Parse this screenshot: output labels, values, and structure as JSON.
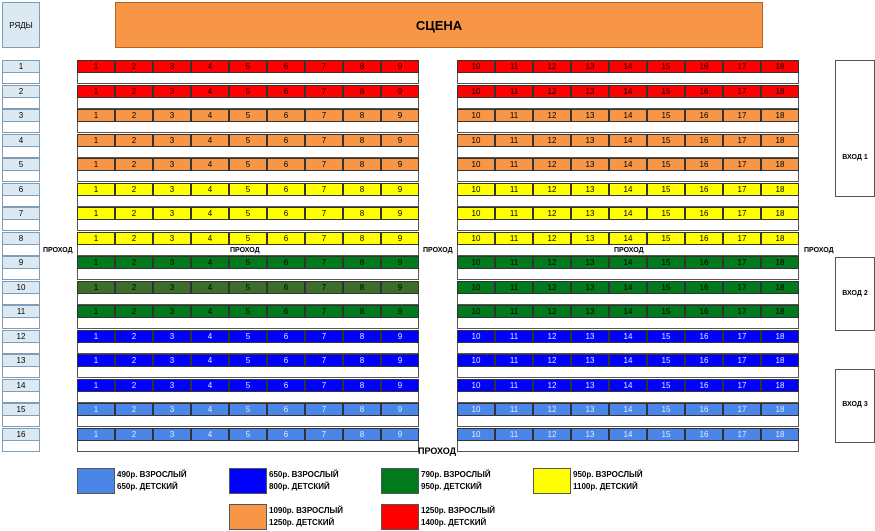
{
  "header": {
    "rows_label": "РЯДЫ",
    "stage_label": "СЦЕНА"
  },
  "aisles": {
    "side_label": "ПРОХОД",
    "center_label": "ПРОХОД",
    "bottom_label": "ПРОХОД"
  },
  "exits": [
    "ВХОД 1",
    "ВХОД 2",
    "ВХОД 3"
  ],
  "colors": {
    "red": "#ff0000",
    "orange": "#f79646",
    "yellow": "#ffff00",
    "green": "#007a1c",
    "blue": "#0000ff",
    "lightblue": "#4a86e8",
    "highlight_green": "#3a6e2a"
  },
  "rows": [
    {
      "label": "1",
      "color": "red"
    },
    {
      "label": "2",
      "color": "red"
    },
    {
      "label": "3",
      "color": "orange"
    },
    {
      "label": "4",
      "color": "orange"
    },
    {
      "label": "5",
      "color": "orange"
    },
    {
      "label": "6",
      "color": "yellow"
    },
    {
      "label": "7",
      "color": "yellow"
    },
    {
      "label": "8",
      "color": "yellow"
    },
    {
      "label": "9",
      "color": "green"
    },
    {
      "label": "10",
      "color": "green",
      "left_color": "highlight_green"
    },
    {
      "label": "11",
      "color": "green"
    },
    {
      "label": "12",
      "color": "blue"
    },
    {
      "label": "13",
      "color": "blue"
    },
    {
      "label": "14",
      "color": "blue"
    },
    {
      "label": "15",
      "color": "lightblue"
    },
    {
      "label": "16",
      "color": "lightblue"
    }
  ],
  "left_seats": [
    "1",
    "2",
    "3",
    "4",
    "5",
    "6",
    "7",
    "8",
    "9"
  ],
  "right_seats": [
    "10",
    "11",
    "12",
    "13",
    "14",
    "15",
    "16",
    "17",
    "18"
  ],
  "legend": [
    {
      "color": "lightblue",
      "line1": "490р. ВЗРОСЛЫЙ",
      "line2": "650р. ДЕТСКИЙ"
    },
    {
      "color": "blue",
      "line1": "650р. ВЗРОСЛЫЙ",
      "line2": "800р. ДЕТСКИЙ"
    },
    {
      "color": "green",
      "line1": "790р. ВЗРОСЛЫЙ",
      "line2": "950р. ДЕТСКИЙ"
    },
    {
      "color": "yellow",
      "line1": "950р. ВЗРОСЛЫЙ",
      "line2": "1100р. ДЕТСКИЙ"
    },
    {
      "color": "orange",
      "line1": "1090р. ВЗРОСЛЫЙ",
      "line2": "1250р. ДЕТСКИЙ"
    },
    {
      "color": "red",
      "line1": "1250р. ВЗРОСЛЫЙ",
      "line2": "1400р. ДЕТСКИЙ"
    }
  ]
}
